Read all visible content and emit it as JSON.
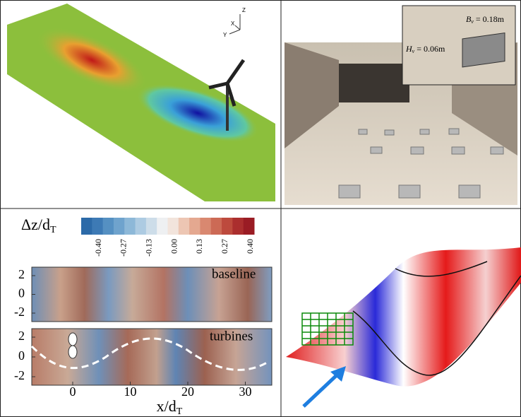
{
  "panel_a": {
    "axis_triad": [
      "Z",
      "X",
      "Y"
    ]
  },
  "panel_b": {
    "inset": {
      "width_label": {
        "base": "B",
        "sub": "v",
        "rest": " = 0.18m"
      },
      "height_label": {
        "base": "H",
        "sub": "v",
        "rest": " = 0.06m"
      }
    }
  },
  "panel_c": {
    "colorbar_label": {
      "base": "Δz/d",
      "sub": "T"
    },
    "colorbar_ticks": [
      "-0.40",
      "-0.27",
      "-0.13",
      "0.00",
      "0.13",
      "0.27",
      "0.40"
    ],
    "strips": [
      {
        "label": "baseline",
        "yticks": [
          "2",
          "0",
          "-2"
        ]
      },
      {
        "label": "turbines",
        "yticks": [
          "2",
          "0",
          "-2"
        ]
      }
    ],
    "xticks": [
      "0",
      "10",
      "20",
      "30"
    ],
    "xlabel": {
      "base": "x/d",
      "sub": "T"
    }
  }
}
